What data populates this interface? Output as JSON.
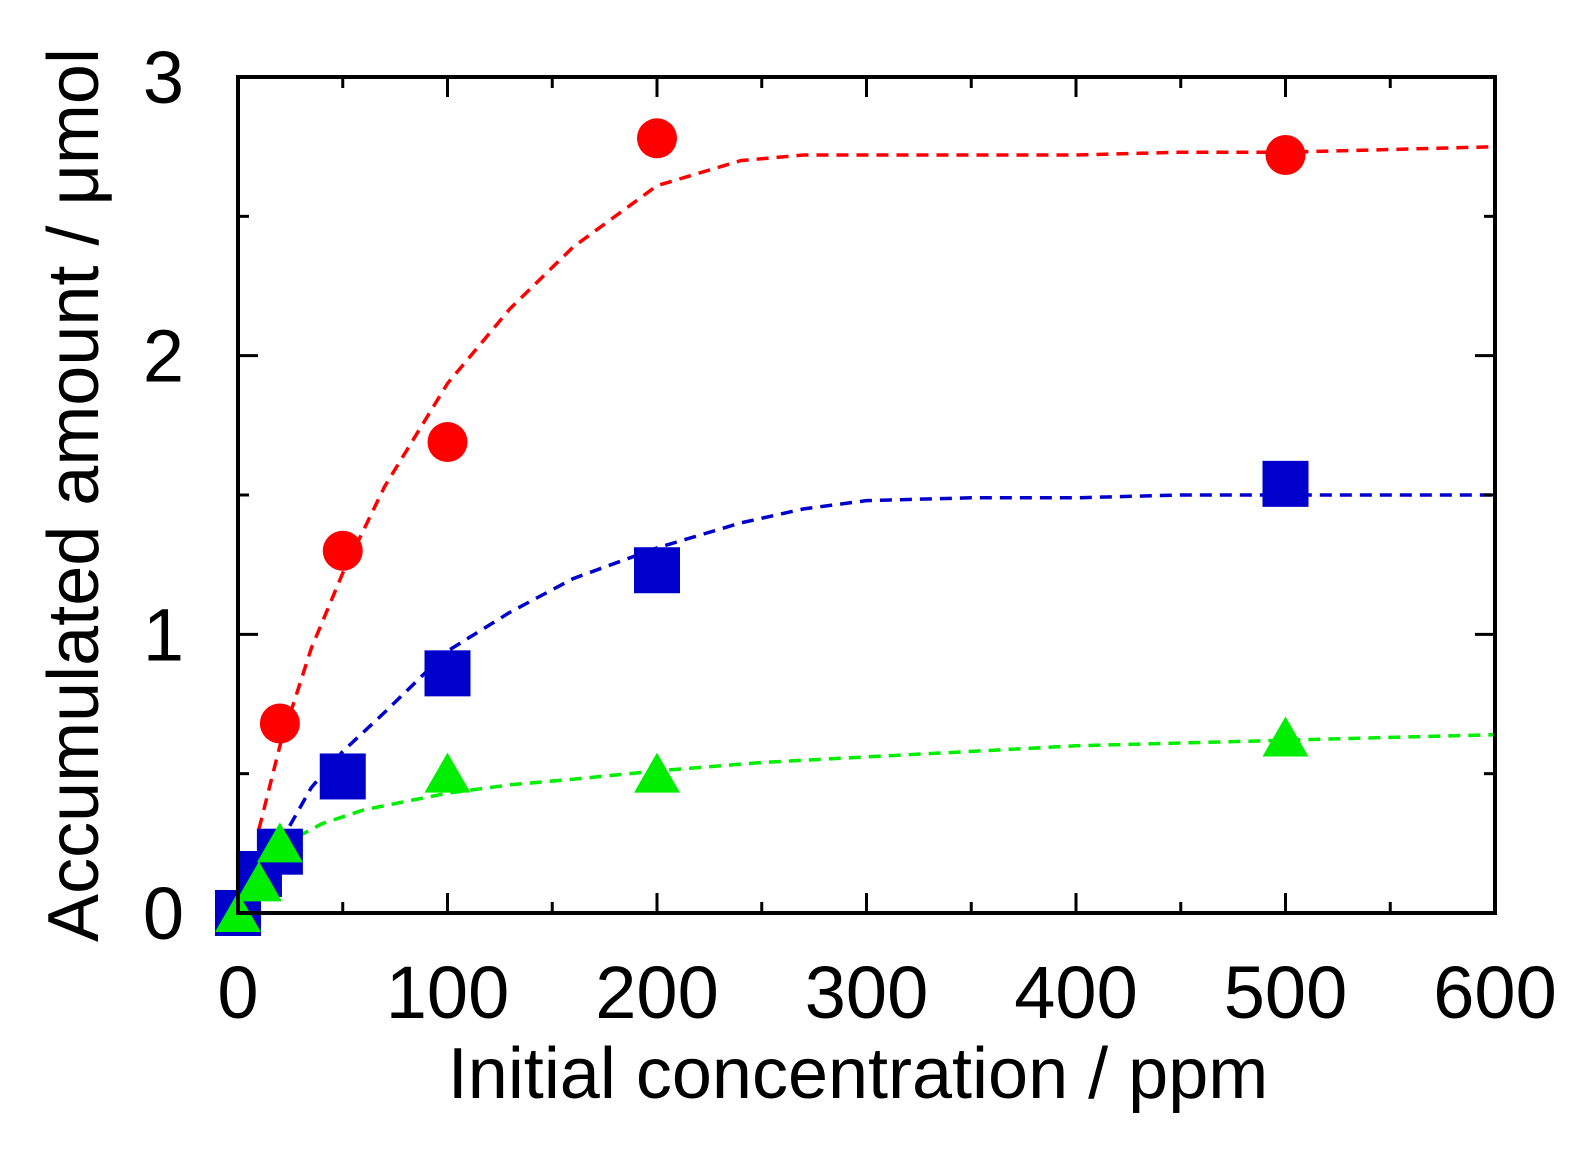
{
  "chart_data": {
    "type": "scatter",
    "title": "",
    "xlabel": "Initial concentration / ppm",
    "ylabel": "Accumulated amount / μmol",
    "xlim": [
      0,
      600
    ],
    "ylim": [
      0,
      3
    ],
    "x_ticks": [
      0,
      100,
      200,
      300,
      400,
      500,
      600
    ],
    "x_tick_labels": [
      "0",
      "100",
      "200",
      "300",
      "400",
      "500",
      "600"
    ],
    "x_minor_ticks": [
      50,
      150,
      250,
      350,
      450,
      550
    ],
    "y_ticks": [
      0,
      1,
      2,
      3
    ],
    "y_tick_labels": [
      "0",
      "1",
      "2",
      "3"
    ],
    "y_minor_ticks": [
      0.5,
      1.5,
      2.5
    ],
    "grid": false,
    "legend": "none",
    "series": [
      {
        "name": "red-circles",
        "color": "#ff0000",
        "marker": "circle",
        "x": [
          20,
          50,
          100,
          200,
          500
        ],
        "y": [
          0.68,
          1.3,
          1.69,
          2.78,
          2.72
        ],
        "fit": {
          "x": [
            10,
            20,
            35,
            50,
            70,
            100,
            130,
            160,
            200,
            240,
            270,
            300,
            350,
            400,
            450,
            500,
            550,
            600
          ],
          "y": [
            0.3,
            0.6,
            0.95,
            1.22,
            1.53,
            1.9,
            2.17,
            2.39,
            2.61,
            2.7,
            2.72,
            2.72,
            2.72,
            2.72,
            2.73,
            2.73,
            2.74,
            2.75
          ]
        }
      },
      {
        "name": "blue-squares",
        "color": "#0000cc",
        "marker": "square",
        "x": [
          0,
          10,
          20,
          50,
          100,
          200,
          500
        ],
        "y": [
          0,
          0.14,
          0.22,
          0.49,
          0.86,
          1.23,
          1.54
        ],
        "fit": {
          "x": [
            20,
            35,
            50,
            70,
            100,
            130,
            160,
            200,
            240,
            270,
            300,
            350,
            400,
            450,
            500,
            550,
            600
          ],
          "y": [
            0.25,
            0.45,
            0.58,
            0.72,
            0.94,
            1.08,
            1.2,
            1.31,
            1.4,
            1.45,
            1.48,
            1.49,
            1.49,
            1.5,
            1.5,
            1.5,
            1.5
          ]
        }
      },
      {
        "name": "green-triangles",
        "color": "#00ee00",
        "marker": "triangle",
        "x": [
          0,
          10,
          20,
          100,
          200,
          500
        ],
        "y": [
          0,
          0.11,
          0.25,
          0.5,
          0.5,
          0.63
        ],
        "fit": {
          "x": [
            20,
            40,
            60,
            80,
            100,
            130,
            160,
            200,
            250,
            300,
            350,
            400,
            450,
            500,
            550,
            600
          ],
          "y": [
            0.24,
            0.32,
            0.37,
            0.4,
            0.43,
            0.46,
            0.48,
            0.51,
            0.54,
            0.56,
            0.58,
            0.6,
            0.61,
            0.62,
            0.63,
            0.64
          ]
        }
      }
    ]
  }
}
